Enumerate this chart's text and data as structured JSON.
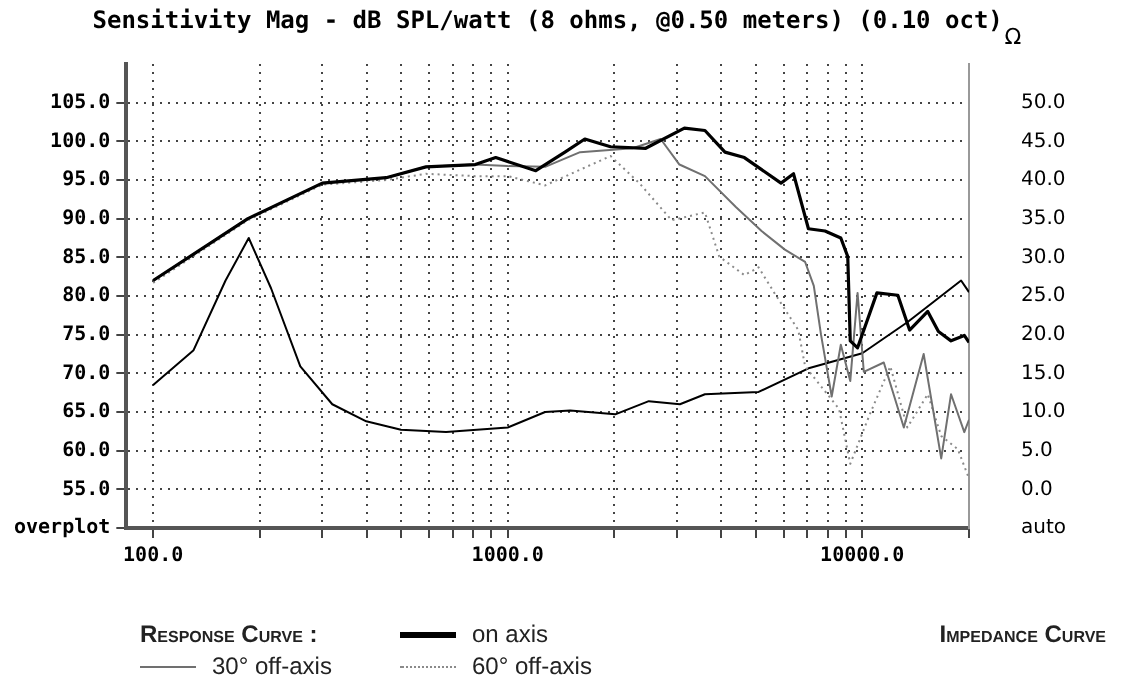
{
  "chart_data": {
    "type": "line",
    "title": "Sensitivity Mag - dB SPL/watt (8 ohms, @0.50 meters) (0.10 oct)",
    "y2label": "Ω",
    "legend_title": "Response Curve :",
    "annotations": [
      "Impedance Curve"
    ],
    "log": "x",
    "xlim": [
      84,
      20000
    ],
    "xticks": [
      {
        "value": 100,
        "label": "100.0"
      },
      {
        "value": 200,
        "label": null
      },
      {
        "value": 300,
        "label": null
      },
      {
        "value": 400,
        "label": null
      },
      {
        "value": 500,
        "label": null
      },
      {
        "value": 600,
        "label": null
      },
      {
        "value": 700,
        "label": null
      },
      {
        "value": 800,
        "label": null
      },
      {
        "value": 900,
        "label": null
      },
      {
        "value": 1000,
        "label": "1000.0"
      },
      {
        "value": 2000,
        "label": null
      },
      {
        "value": 3000,
        "label": null
      },
      {
        "value": 4000,
        "label": null
      },
      {
        "value": 5000,
        "label": null
      },
      {
        "value": 6000,
        "label": null
      },
      {
        "value": 7000,
        "label": null
      },
      {
        "value": 8000,
        "label": null
      },
      {
        "value": 9000,
        "label": null
      },
      {
        "value": 10000,
        "label": "10000.0"
      },
      {
        "value": 20000,
        "label": null
      }
    ],
    "ylim": [
      50,
      110
    ],
    "yticks": [
      {
        "value": 50,
        "label": "overplot"
      },
      {
        "value": 55,
        "label": "55.0"
      },
      {
        "value": 60,
        "label": "60.0"
      },
      {
        "value": 65,
        "label": "65.0"
      },
      {
        "value": 70,
        "label": "70.0"
      },
      {
        "value": 75,
        "label": "75.0"
      },
      {
        "value": 80,
        "label": "80.0"
      },
      {
        "value": 85,
        "label": "85.0"
      },
      {
        "value": 90,
        "label": "90.0"
      },
      {
        "value": 95,
        "label": "95.0"
      },
      {
        "value": 100,
        "label": "100.0"
      },
      {
        "value": 105,
        "label": "105.0"
      }
    ],
    "y2lim": [
      -5,
      55
    ],
    "y2ticks": [
      {
        "value": -5,
        "label": "auto"
      },
      {
        "value": 0,
        "label": "0.0"
      },
      {
        "value": 5,
        "label": "5.0"
      },
      {
        "value": 10,
        "label": "10.0"
      },
      {
        "value": 15,
        "label": "15.0"
      },
      {
        "value": 20,
        "label": "20.0"
      },
      {
        "value": 25,
        "label": "25.0"
      },
      {
        "value": 30,
        "label": "30.0"
      },
      {
        "value": 35,
        "label": "35.0"
      },
      {
        "value": 40,
        "label": "40.0"
      },
      {
        "value": 45,
        "label": "45.0"
      },
      {
        "value": 50,
        "label": "50.0"
      }
    ],
    "grid": true,
    "legend": "bottom",
    "marker": "none",
    "series": [
      {
        "name": "on axis",
        "color": "#000000",
        "line_style": "solid",
        "x": [
          100,
          185,
          300,
          454,
          588,
          810,
          925,
          1200,
          1450,
          1650,
          1950,
          2450,
          3150,
          3600,
          4100,
          4650,
          5900,
          6400,
          7050,
          7850,
          8700,
          9100,
          9250,
          9700,
          11000,
          12600,
          13600,
          15300,
          16400,
          17800,
          19400,
          20000
        ],
        "values": [
          82,
          90,
          94.6,
          95.3,
          96.7,
          97,
          97.9,
          96.2,
          98.6,
          100.3,
          99.3,
          99.1,
          101.7,
          101.4,
          98.6,
          97.9,
          94.6,
          95.8,
          88.7,
          88.4,
          87.5,
          85.1,
          74.2,
          73.3,
          80.4,
          80.1,
          75.6,
          78,
          75.4,
          74.2,
          74.9,
          74
        ]
      },
      {
        "name": "30° off-axis",
        "color": "#707070",
        "line_style": "solid",
        "x": [
          100,
          185,
          300,
          454,
          588,
          810,
          1000,
          1275,
          1600,
          2250,
          2700,
          3050,
          3600,
          4400,
          5200,
          6050,
          6900,
          7300,
          7650,
          8200,
          8700,
          9250,
          9700,
          10100,
          11500,
          13100,
          14900,
          16700,
          17800,
          19400,
          20000
        ],
        "values": [
          82,
          90,
          94.6,
          95.3,
          96.7,
          97,
          96.8,
          96.7,
          98.6,
          99.1,
          100.3,
          97,
          95.5,
          91.5,
          88.4,
          86,
          84.4,
          81.3,
          75,
          67,
          73.7,
          69,
          80.4,
          70.2,
          71.4,
          63,
          72.5,
          59,
          67.3,
          62.4,
          64
        ]
      },
      {
        "name": "60° off-axis",
        "color": "#8a8a8a",
        "line_style": "dotted",
        "x": [
          100,
          185,
          300,
          454,
          588,
          810,
          1000,
          1275,
          1950,
          2350,
          2900,
          3600,
          3950,
          4650,
          5100,
          5650,
          6600,
          6900,
          8600,
          9250,
          10500,
          12000,
          13400,
          15300,
          16700,
          18600,
          20000
        ],
        "values": [
          81.7,
          89.8,
          94.4,
          95,
          95.8,
          95.5,
          95.5,
          94.3,
          98.1,
          94.6,
          89.8,
          90.8,
          85.1,
          82.7,
          83.7,
          80.4,
          75.6,
          70.9,
          65.4,
          58.3,
          64.7,
          70.9,
          63,
          67.3,
          61.9,
          60.2,
          56.4
        ]
      },
      {
        "color": "#000000",
        "line_style": "solid",
        "axis": "y2",
        "x": [
          100,
          130,
          160,
          186,
          215,
          260,
          320,
          399,
          500,
          670,
          1000,
          1275,
          1500,
          2010,
          2500,
          3060,
          3600,
          5100,
          7100,
          10000,
          13400,
          19000,
          20000
        ],
        "values": [
          13.5,
          18,
          27,
          32.5,
          26,
          15.9,
          11,
          8.8,
          7.7,
          7.4,
          8,
          10,
          10.2,
          9.7,
          11.4,
          11,
          12.3,
          12.6,
          15.7,
          17.6,
          21.6,
          27,
          25.5
        ]
      }
    ]
  }
}
